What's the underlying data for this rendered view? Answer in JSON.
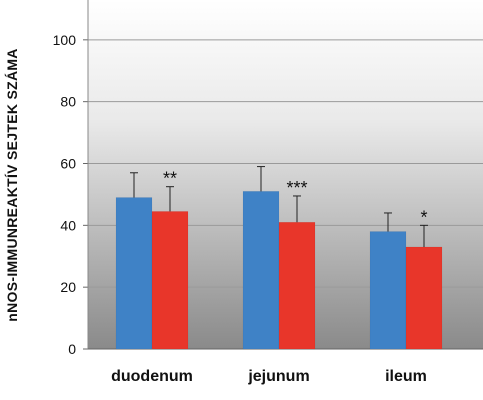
{
  "chart_data": {
    "type": "bar",
    "categories": [
      "duodenum",
      "jejunum",
      "ileum"
    ],
    "ylabel": "nNOS-IMMUNREAKTÍV SEJTEK SZÁMA",
    "ylim": [
      0,
      120
    ],
    "yticks": [
      0,
      20,
      40,
      60,
      80,
      100,
      120
    ],
    "grid": true,
    "series": [
      {
        "color": "#3f82c6",
        "values": [
          49,
          51,
          38
        ],
        "errors": [
          8,
          8,
          6
        ]
      },
      {
        "color": "#e8362a",
        "values": [
          44.5,
          41,
          33
        ],
        "errors": [
          8,
          8.5,
          7
        ]
      }
    ],
    "annotations": [
      "**",
      "***",
      "*"
    ]
  }
}
